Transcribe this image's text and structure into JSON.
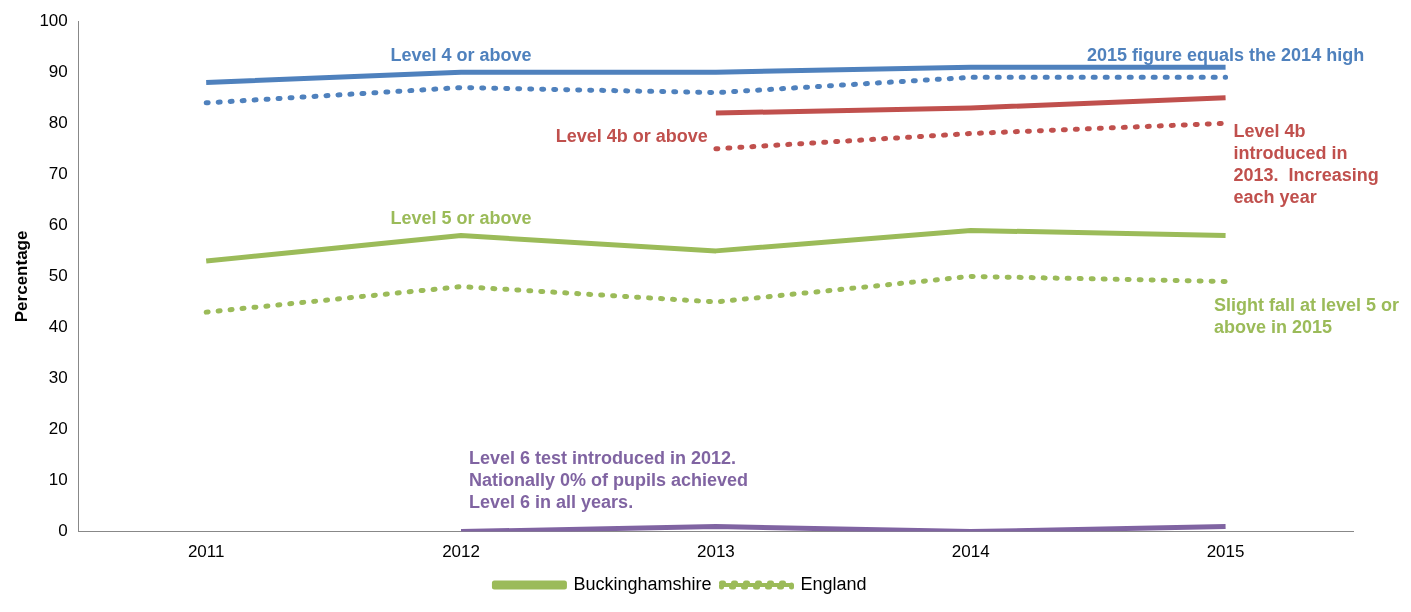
{
  "chart_data": {
    "type": "line",
    "ylabel": "Percentage",
    "categories": [
      "2011",
      "2012",
      "2013",
      "2014",
      "2015"
    ],
    "series": [
      {
        "color": "#4f81bd",
        "line_style": "solid",
        "values": [
          88,
          90,
          90,
          91,
          91
        ]
      },
      {
        "color": "#4f81bd",
        "line_style": "dotted",
        "values": [
          84,
          87,
          86,
          89,
          89
        ]
      },
      {
        "color": "#c0504d",
        "line_style": "solid",
        "values": [
          null,
          null,
          82,
          83,
          85
        ]
      },
      {
        "color": "#c0504d",
        "line_style": "dotted",
        "values": [
          null,
          null,
          75,
          78,
          80
        ]
      },
      {
        "name": "Buckinghamshire",
        "color": "#9bbb59",
        "line_style": "solid",
        "values": [
          53,
          58,
          55,
          59,
          58
        ]
      },
      {
        "name": "England",
        "color": "#9bbb59",
        "line_style": "dotted",
        "values": [
          43,
          48,
          45,
          50,
          49
        ]
      },
      {
        "color": "#8064a2",
        "line_style": "solid",
        "values": [
          null,
          0,
          1,
          0,
          1
        ]
      }
    ],
    "ylim": [
      0,
      100
    ],
    "yticks": [
      0,
      10,
      20,
      30,
      40,
      50,
      60,
      70,
      80,
      90,
      100
    ],
    "grid": false,
    "legend": "bottom",
    "marker": "none",
    "annotations": [
      "Level 4 or above",
      "2015 figure equals the 2014 high",
      "Level 4b or above",
      "Level 4b\nintroduced in\n2013.  Increasing\neach year",
      "Level 5 or above",
      "Slight fall at level 5 or\nabove in 2015",
      "Level 6 test introduced in 2012.\nNationally 0% of pupils achieved\nLevel 6 in all years."
    ]
  }
}
